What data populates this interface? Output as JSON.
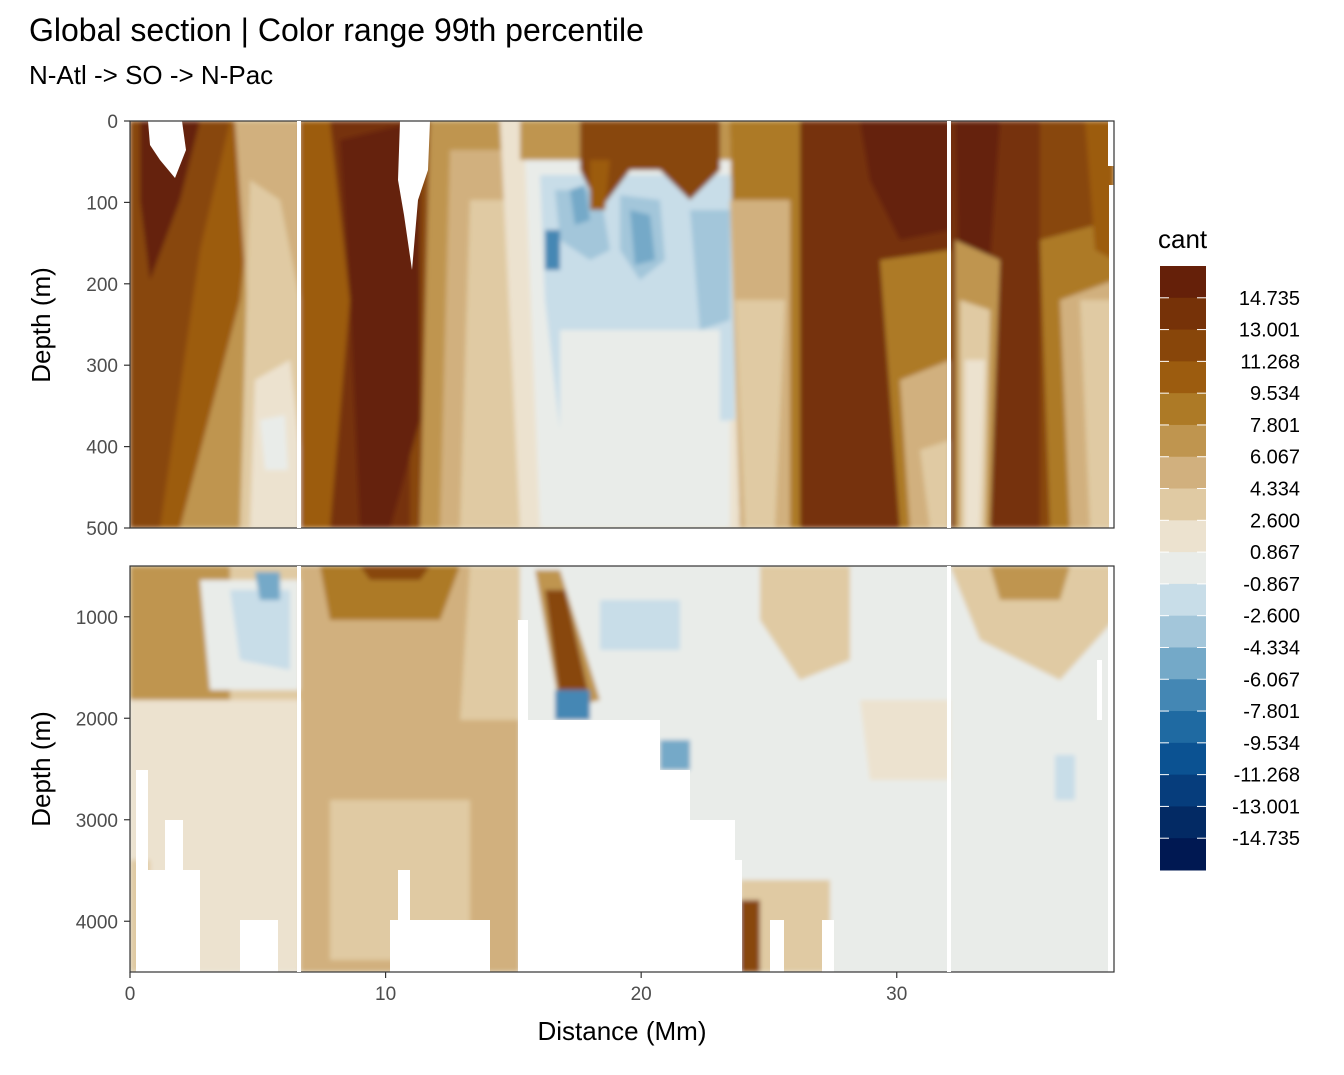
{
  "chart_data": {
    "type": "heatmap",
    "title": "Global section | Color range 99th percentile",
    "subtitle": "N-Atl -> SO -> N-Pac",
    "xlabel": "Distance (Mm)",
    "x_ticks": [
      "0",
      "10",
      "20",
      "30"
    ],
    "xlim": [
      0,
      38.5
    ],
    "panels": [
      {
        "name": "upper",
        "ylabel": "Depth (m)",
        "ylim": [
          500,
          0
        ],
        "y_ticks": [
          0,
          100,
          200,
          300,
          400,
          500
        ],
        "y_tick_labels": [
          "0",
          "100",
          "200",
          "300",
          "400",
          "500"
        ]
      },
      {
        "name": "lower",
        "ylabel": "Depth (m)",
        "ylim": [
          4500,
          500
        ],
        "y_ticks": [
          1000,
          2000,
          3000,
          4000
        ],
        "y_tick_labels": [
          "1000",
          "2000",
          "3000",
          "4000"
        ]
      }
    ],
    "legend": {
      "title": "cant",
      "position": "right",
      "labels": [
        "14.735",
        "13.001",
        "11.268",
        "9.534",
        "7.801",
        "6.067",
        "4.334",
        "2.600",
        "0.867",
        "-0.867",
        "-2.600",
        "-4.334",
        "-6.067",
        "-7.801",
        "-9.534",
        "-11.268",
        "-13.001",
        "-14.735"
      ],
      "colors": [
        "#652009",
        "#763208",
        "#88460a",
        "#9c5c0f",
        "#ad7a26",
        "#bf954f",
        "#d1b07e",
        "#e0caa3",
        "#ece2cf",
        "#e9ece9",
        "#c8dde8",
        "#a3c6da",
        "#74a9c8",
        "#4487b4",
        "#1f6aa2",
        "#0b5292",
        "#063d7c",
        "#032a64",
        "#001852"
      ]
    },
    "bottom_gaps_mm": [
      {
        "x": [
          0.2,
          2.8
        ],
        "from_depth": 3500
      },
      {
        "x": [
          2.8,
          6.0
        ],
        "from_depth": 4300
      },
      {
        "x": [
          10.0,
          14.0
        ],
        "from_depth": 4000
      },
      {
        "x": [
          15.1,
          23.9
        ],
        "from_depth": 2000
      },
      {
        "x": [
          16.2,
          17.1
        ],
        "from_depth": 1900
      },
      {
        "x": [
          23.9,
          25.0
        ],
        "from_depth": 4500
      }
    ],
    "section_breaks_mm": [
      6.5,
      32.0
    ],
    "grid": true
  }
}
